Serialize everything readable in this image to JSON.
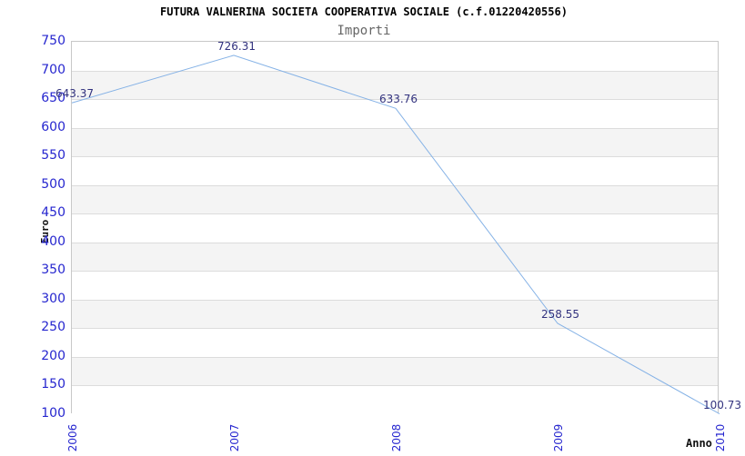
{
  "header": {
    "title": "FUTURA VALNERINA SOCIETA COOPERATIVA SOCIALE (c.f.01220420556)",
    "subtitle": "Importi"
  },
  "chart_data": {
    "type": "line",
    "x": [
      "2006",
      "2007",
      "2008",
      "2009",
      "2010"
    ],
    "values": [
      643.37,
      726.31,
      633.76,
      258.55,
      100.73
    ],
    "point_labels": [
      "643.37",
      "726.31",
      "633.76",
      "258.55",
      "100.73"
    ],
    "title": "Importi",
    "xlabel": "Anno",
    "ylabel": "Euro",
    "ylim": [
      100,
      750
    ],
    "ytick_step": 50,
    "legend": "none",
    "grid": true,
    "colors": {
      "line": "#85b2e6",
      "tick_label": "#2626cf",
      "point_label": "#32327e",
      "band_light": "#ffffff",
      "band_dark": "#f4f4f4",
      "gridline": "#dcdcdc",
      "plot_border": "#c8c8c8",
      "title": "#000000",
      "subtitle": "#666666"
    }
  }
}
